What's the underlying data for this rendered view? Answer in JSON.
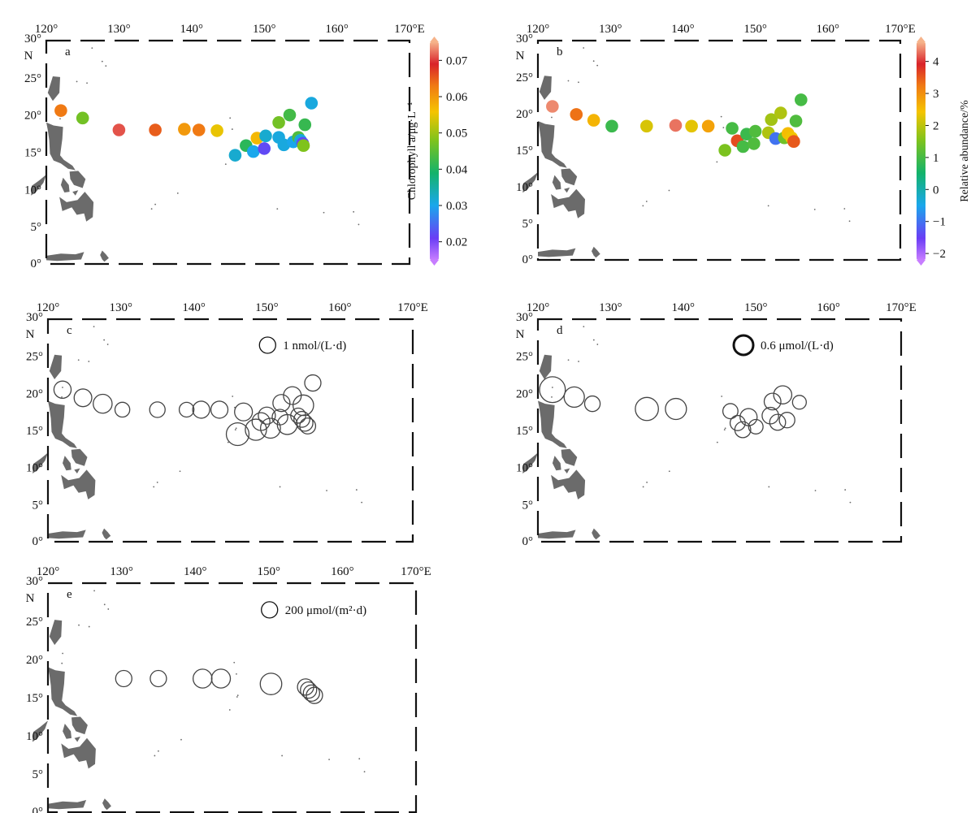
{
  "ticks": {
    "lon": [
      "120°",
      "130°",
      "140°",
      "150°",
      "160°",
      "170°E"
    ],
    "lat": [
      "30°",
      "25°",
      "20°",
      "15°",
      "10°",
      "5°",
      "0°"
    ],
    "north": "N"
  },
  "colors": {
    "land": "#6b6b6b",
    "frame": "#111111",
    "circle_stroke": "#444444"
  },
  "panels": [
    {
      "label": "a",
      "type": "colored_points",
      "colorbar": {
        "label": "Chlorophyll a/μg·L⁻¹",
        "range": [
          0.015,
          0.075
        ],
        "ticks": [
          "0.02",
          "0.03",
          "0.04",
          "0.05",
          "0.06",
          "0.07"
        ],
        "tick_values": [
          0.02,
          0.03,
          0.04,
          0.05,
          0.06,
          0.07
        ]
      },
      "points": [
        {
          "lon": 122.0,
          "lat": 20.6,
          "v": 0.063
        },
        {
          "lon": 125.0,
          "lat": 19.6,
          "v": 0.047
        },
        {
          "lon": 130.0,
          "lat": 18.0,
          "v": 0.071
        },
        {
          "lon": 135.0,
          "lat": 18.0,
          "v": 0.065
        },
        {
          "lon": 139.0,
          "lat": 18.1,
          "v": 0.06
        },
        {
          "lon": 141.0,
          "lat": 18.0,
          "v": 0.063
        },
        {
          "lon": 143.5,
          "lat": 17.9,
          "v": 0.055
        },
        {
          "lon": 146.0,
          "lat": 14.6,
          "v": 0.032
        },
        {
          "lon": 147.5,
          "lat": 15.9,
          "v": 0.041
        },
        {
          "lon": 148.5,
          "lat": 15.1,
          "v": 0.03
        },
        {
          "lon": 149.0,
          "lat": 16.9,
          "v": 0.057
        },
        {
          "lon": 150.0,
          "lat": 15.5,
          "v": 0.022
        },
        {
          "lon": 150.2,
          "lat": 17.2,
          "v": 0.032
        },
        {
          "lon": 152.0,
          "lat": 17.0,
          "v": 0.031
        },
        {
          "lon": 152.0,
          "lat": 19.0,
          "v": 0.047
        },
        {
          "lon": 152.7,
          "lat": 16.0,
          "v": 0.031
        },
        {
          "lon": 153.5,
          "lat": 20.0,
          "v": 0.043
        },
        {
          "lon": 154.0,
          "lat": 16.4,
          "v": 0.03
        },
        {
          "lon": 154.7,
          "lat": 17.0,
          "v": 0.044
        },
        {
          "lon": 155.0,
          "lat": 16.6,
          "v": 0.031
        },
        {
          "lon": 155.3,
          "lat": 16.2,
          "v": 0.022
        },
        {
          "lon": 155.4,
          "lat": 15.9,
          "v": 0.048
        },
        {
          "lon": 155.6,
          "lat": 18.7,
          "v": 0.042
        },
        {
          "lon": 156.5,
          "lat": 21.6,
          "v": 0.031
        }
      ]
    },
    {
      "label": "b",
      "type": "colored_points",
      "colorbar": {
        "label": "Relative abundance/%",
        "range": [
          -2.2,
          4.6
        ],
        "ticks": [
          "4",
          "3",
          "2",
          "1",
          "0",
          "−1",
          "−2"
        ],
        "tick_values": [
          4,
          3,
          2,
          1,
          0,
          -1,
          -2
        ]
      },
      "points": [
        {
          "lon": 122.0,
          "lat": 21.0,
          "v": 4.4
        },
        {
          "lon": 125.3,
          "lat": 19.9,
          "v": 3.3
        },
        {
          "lon": 127.7,
          "lat": 19.1,
          "v": 2.6
        },
        {
          "lon": 130.2,
          "lat": 18.3,
          "v": 0.9
        },
        {
          "lon": 135.0,
          "lat": 18.3,
          "v": 2.2
        },
        {
          "lon": 139.0,
          "lat": 18.4,
          "v": 4.3
        },
        {
          "lon": 141.2,
          "lat": 18.3,
          "v": 2.3
        },
        {
          "lon": 143.5,
          "lat": 18.3,
          "v": 2.8
        },
        {
          "lon": 145.8,
          "lat": 15.0,
          "v": 1.5
        },
        {
          "lon": 146.8,
          "lat": 18.0,
          "v": 1.0
        },
        {
          "lon": 147.5,
          "lat": 16.3,
          "v": 3.6
        },
        {
          "lon": 148.3,
          "lat": 15.5,
          "v": 1.0
        },
        {
          "lon": 148.8,
          "lat": 17.2,
          "v": 0.9
        },
        {
          "lon": 149.8,
          "lat": 15.9,
          "v": 1.1
        },
        {
          "lon": 150.0,
          "lat": 17.6,
          "v": 1.1
        },
        {
          "lon": 151.8,
          "lat": 17.4,
          "v": 1.9
        },
        {
          "lon": 152.2,
          "lat": 19.2,
          "v": 1.8
        },
        {
          "lon": 152.8,
          "lat": 16.6,
          "v": -1.0
        },
        {
          "lon": 153.5,
          "lat": 20.1,
          "v": 1.9
        },
        {
          "lon": 154.0,
          "lat": 16.7,
          "v": 1.4
        },
        {
          "lon": 154.5,
          "lat": 17.3,
          "v": 2.5
        },
        {
          "lon": 155.0,
          "lat": 16.7,
          "v": 2.4
        },
        {
          "lon": 155.3,
          "lat": 16.2,
          "v": 3.5
        },
        {
          "lon": 155.6,
          "lat": 19.0,
          "v": 1.1
        },
        {
          "lon": 156.3,
          "lat": 21.9,
          "v": 1.0
        }
      ]
    },
    {
      "label": "c",
      "type": "bubbles",
      "legend": {
        "text": "1 nmol/(L·d)",
        "value": 1.0,
        "bold": false
      },
      "points": [
        {
          "lon": 122.0,
          "lat": 20.5,
          "v": 1.12
        },
        {
          "lon": 124.8,
          "lat": 19.4,
          "v": 1.18
        },
        {
          "lon": 127.5,
          "lat": 18.6,
          "v": 1.35
        },
        {
          "lon": 130.2,
          "lat": 17.8,
          "v": 0.83
        },
        {
          "lon": 135.0,
          "lat": 17.8,
          "v": 0.91
        },
        {
          "lon": 139.0,
          "lat": 17.8,
          "v": 0.82
        },
        {
          "lon": 141.0,
          "lat": 17.8,
          "v": 1.1
        },
        {
          "lon": 143.5,
          "lat": 17.8,
          "v": 1.1
        },
        {
          "lon": 146.0,
          "lat": 14.5,
          "v": 1.95
        },
        {
          "lon": 146.8,
          "lat": 17.5,
          "v": 1.2
        },
        {
          "lon": 148.5,
          "lat": 15.1,
          "v": 1.7
        },
        {
          "lon": 149.2,
          "lat": 16.2,
          "v": 1.2
        },
        {
          "lon": 150.0,
          "lat": 17.0,
          "v": 1.1
        },
        {
          "lon": 150.5,
          "lat": 15.3,
          "v": 1.5
        },
        {
          "lon": 151.8,
          "lat": 16.8,
          "v": 0.92
        },
        {
          "lon": 152.0,
          "lat": 18.7,
          "v": 1.1
        },
        {
          "lon": 152.8,
          "lat": 15.8,
          "v": 1.5
        },
        {
          "lon": 153.5,
          "lat": 19.7,
          "v": 1.2
        },
        {
          "lon": 154.3,
          "lat": 17.0,
          "v": 0.85
        },
        {
          "lon": 154.8,
          "lat": 16.5,
          "v": 0.95
        },
        {
          "lon": 155.2,
          "lat": 16.0,
          "v": 1.0
        },
        {
          "lon": 155.6,
          "lat": 15.6,
          "v": 0.95
        },
        {
          "lon": 155.0,
          "lat": 18.4,
          "v": 1.6
        },
        {
          "lon": 156.3,
          "lat": 21.4,
          "v": 1.0
        }
      ]
    },
    {
      "label": "d",
      "type": "bubbles",
      "legend": {
        "text": "0.6 μmol/(L·d)",
        "value": 0.6,
        "bold": true
      },
      "points": [
        {
          "lon": 122.0,
          "lat": 20.5,
          "v": 1.05
        },
        {
          "lon": 125.0,
          "lat": 19.5,
          "v": 0.65
        },
        {
          "lon": 127.5,
          "lat": 18.6,
          "v": 0.38
        },
        {
          "lon": 135.0,
          "lat": 17.9,
          "v": 0.84
        },
        {
          "lon": 139.0,
          "lat": 17.9,
          "v": 0.7
        },
        {
          "lon": 146.5,
          "lat": 17.6,
          "v": 0.36
        },
        {
          "lon": 147.5,
          "lat": 16.0,
          "v": 0.36
        },
        {
          "lon": 148.2,
          "lat": 15.1,
          "v": 0.4
        },
        {
          "lon": 149.0,
          "lat": 16.8,
          "v": 0.46
        },
        {
          "lon": 150.0,
          "lat": 15.5,
          "v": 0.33
        },
        {
          "lon": 152.0,
          "lat": 17.0,
          "v": 0.43
        },
        {
          "lon": 152.3,
          "lat": 18.9,
          "v": 0.44
        },
        {
          "lon": 153.0,
          "lat": 16.1,
          "v": 0.4
        },
        {
          "lon": 153.7,
          "lat": 19.8,
          "v": 0.52
        },
        {
          "lon": 154.3,
          "lat": 16.4,
          "v": 0.38
        },
        {
          "lon": 156.0,
          "lat": 18.8,
          "v": 0.3
        }
      ]
    },
    {
      "label": "e",
      "type": "bubbles",
      "legend": {
        "text": "200 μmol/(m²·d)",
        "value": 200,
        "bold": false
      },
      "points": [
        {
          "lon": 130.3,
          "lat": 17.5,
          "v": 200
        },
        {
          "lon": 135.0,
          "lat": 17.5,
          "v": 200
        },
        {
          "lon": 141.0,
          "lat": 17.5,
          "v": 270
        },
        {
          "lon": 143.5,
          "lat": 17.5,
          "v": 270
        },
        {
          "lon": 150.3,
          "lat": 16.8,
          "v": 350
        },
        {
          "lon": 155.0,
          "lat": 16.4,
          "v": 200
        },
        {
          "lon": 155.4,
          "lat": 16.0,
          "v": 200
        },
        {
          "lon": 155.8,
          "lat": 15.6,
          "v": 200
        },
        {
          "lon": 156.2,
          "lat": 15.3,
          "v": 200
        }
      ]
    }
  ]
}
